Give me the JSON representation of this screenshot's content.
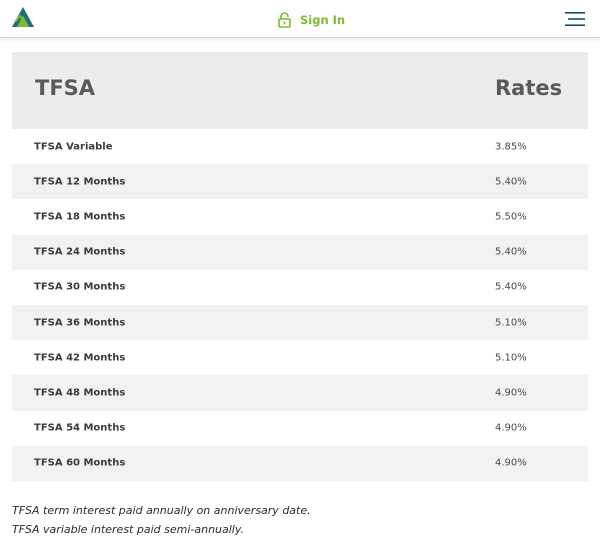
{
  "header": {
    "logo_icon": "mountain-logo-icon",
    "signin_icon": "lock-icon",
    "signin_label": "Sign In",
    "menu_icon": "hamburger-menu-icon",
    "colors": {
      "brand_green": "#7cbb2f",
      "brand_teal": "#1f6f78",
      "menu_blue": "#0f4c73"
    }
  },
  "rates_table": {
    "header_product": "TFSA",
    "header_rate": "Rates",
    "rows": [
      {
        "product": "TFSA Variable",
        "rate": "3.85%"
      },
      {
        "product": "TFSA 12 Months",
        "rate": "5.40%"
      },
      {
        "product": "TFSA 18 Months",
        "rate": "5.50%"
      },
      {
        "product": "TFSA 24 Months",
        "rate": "5.40%"
      },
      {
        "product": "TFSA 30 Months",
        "rate": "5.40%"
      },
      {
        "product": "TFSA 36 Months",
        "rate": "5.10%"
      },
      {
        "product": "TFSA 42 Months",
        "rate": "5.10%"
      },
      {
        "product": "TFSA 48 Months",
        "rate": "4.90%"
      },
      {
        "product": "TFSA 54 Months",
        "rate": "4.90%"
      },
      {
        "product": "TFSA 60 Months",
        "rate": "4.90%"
      }
    ]
  },
  "footnotes": [
    "TFSA term interest paid annually on anniversary date.",
    "TFSA variable interest paid semi-annually."
  ]
}
